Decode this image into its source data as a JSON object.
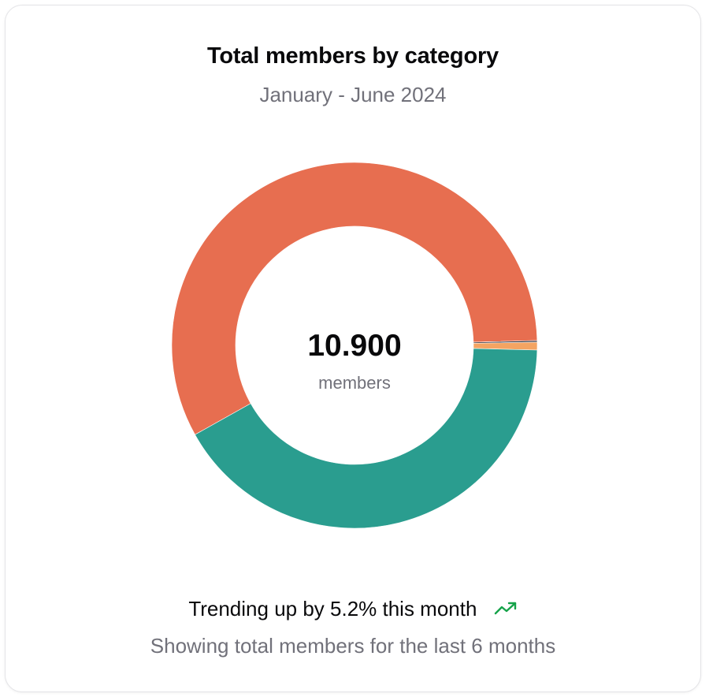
{
  "card": {
    "title": "Total members by category",
    "subtitle": "January - June 2024"
  },
  "center": {
    "value": "10.900",
    "label": "members"
  },
  "footer": {
    "trend_text": "Trending up by 5.2% this month",
    "trend_icon": "trending-up-icon",
    "description": "Showing total members for the last 6 months"
  },
  "colors": {
    "trend": "#16a34a"
  },
  "chart_data": {
    "type": "pie",
    "variant": "donut",
    "title": "Total members by category",
    "subtitle": "January - June 2024",
    "total": 10900,
    "slices": [
      {
        "value": 6290,
        "color": "#e76e50"
      },
      {
        "value": 15,
        "color": "#2a2a38"
      },
      {
        "value": 75,
        "color": "#f4a462"
      },
      {
        "value": 4520,
        "color": "#2a9d8f"
      }
    ]
  }
}
